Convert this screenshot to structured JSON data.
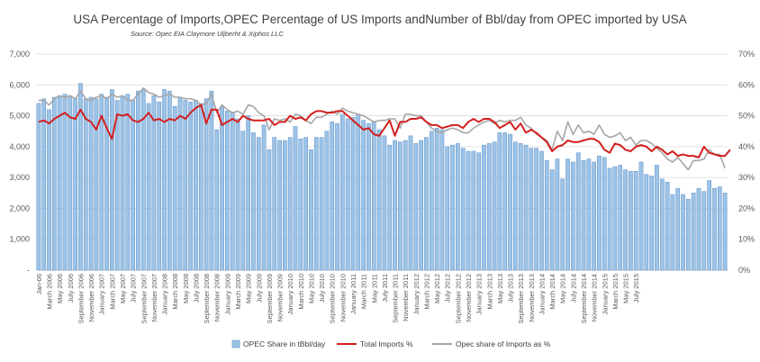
{
  "chart_data": {
    "type": "bar",
    "title": "USA Percentage of Imports,OPEC Percentage of US Imports andNumber  of Bbl/day from OPEC imported by USA",
    "subtitle": "Source: Opec EIA Claymore Uljberht & Xiphos LLC",
    "y_left": {
      "min": 0,
      "max": 7000,
      "ticks": [
        "-",
        "1,000",
        "2,000",
        "3,000",
        "4,000",
        "5,000",
        "6,000",
        "7,000"
      ]
    },
    "y_right": {
      "min": 0,
      "max": 70,
      "ticks": [
        "0%",
        "10%",
        "20%",
        "30%",
        "40%",
        "50%",
        "60%",
        "70%"
      ]
    },
    "grid": true,
    "legend_position": "bottom",
    "x_tick_labels": [
      "Jan-06",
      "March 2006",
      "May 2006",
      "July 2006",
      "September 2006",
      "November 2006",
      "January 2007",
      "March 2007",
      "May 2007",
      "July 2007",
      "September 2007",
      "November 2007",
      "January 2008",
      "March 2008",
      "May 2008",
      "July 2008",
      "September 2008",
      "November 2008",
      "January 2009",
      "March 2009",
      "May 2009",
      "July 2009",
      "September 2009",
      "November 2009",
      "January 2010",
      "March 2010",
      "May 2010",
      "July 2010",
      "September 2010",
      "November 2010",
      "January 2011",
      "March 2011",
      "May 2011",
      "July 2011",
      "September 2011",
      "November 2011",
      "January 2012",
      "March 2012",
      "May 2012",
      "July 2012",
      "September 2012",
      "November 2012",
      "January 2013",
      "March 2013",
      "May 2013",
      "July 2013",
      "September 2013",
      "November 2013",
      "January 2014",
      "March 2014",
      "May 2014",
      "July 2014",
      "September 2014",
      "November 2014",
      "January 2015",
      "March 2015",
      "May 2015",
      "July 2015"
    ],
    "series": [
      {
        "name": "OPEC Share in tBbl/day",
        "type": "bar",
        "axis": "left",
        "color": "#9dc3e6",
        "values": [
          5400,
          5550,
          5200,
          5600,
          5650,
          5700,
          5650,
          5550,
          6050,
          5550,
          5600,
          5550,
          5700,
          5600,
          5850,
          5500,
          5650,
          5700,
          5500,
          5800,
          5850,
          5400,
          5650,
          5450,
          5850,
          5800,
          5300,
          5600,
          5500,
          5450,
          5500,
          5400,
          5550,
          5800,
          4550,
          5300,
          5150,
          5100,
          4900,
          4500,
          5000,
          4450,
          4300,
          4700,
          3900,
          4300,
          4200,
          4200,
          4300,
          4650,
          4250,
          4300,
          3900,
          4300,
          4300,
          4500,
          4800,
          4750,
          5050,
          4900,
          4950,
          5050,
          4850,
          4750,
          4800,
          4550,
          4350,
          4050,
          4200,
          4150,
          4200,
          4350,
          4100,
          4200,
          4300,
          4500,
          4600,
          4550,
          4000,
          4050,
          4100,
          3950,
          3850,
          3850,
          3800,
          4050,
          4100,
          4150,
          4450,
          4450,
          4400,
          4150,
          4100,
          4050,
          3950,
          3950,
          3850,
          3550,
          3250,
          3600,
          2950,
          3600,
          3500,
          3800,
          3550,
          3600,
          3500,
          3700,
          3650,
          3300,
          3350,
          3400,
          3250,
          3200,
          3200,
          3500,
          3100,
          3050,
          3400,
          2950,
          2850,
          2450,
          2650,
          2450,
          2300,
          2500,
          2650,
          2550,
          2900,
          2650,
          2700,
          2500
        ]
      },
      {
        "name": "Total Imports %",
        "type": "line",
        "axis": "right",
        "color": "#d41f1f",
        "values": [
          48,
          48.5,
          47.5,
          49,
          50,
          51,
          49.5,
          49,
          52,
          49,
          48,
          45.5,
          50,
          46,
          42.5,
          50.5,
          50,
          50.5,
          48.5,
          48,
          49,
          51,
          48.5,
          49,
          48,
          49,
          48.5,
          50,
          49,
          51,
          52.5,
          53.5,
          47.5,
          52,
          52,
          47,
          48,
          49,
          48,
          50,
          49,
          48.5,
          48.5,
          48.5,
          49,
          47,
          48,
          48,
          50,
          49,
          49.5,
          48.5,
          50.5,
          51.5,
          51.5,
          51,
          51,
          51.5,
          51.5,
          50,
          48.5,
          47,
          45.5,
          46,
          44,
          43.5,
          46,
          48.5,
          43.5,
          48,
          48,
          49,
          49,
          49.5,
          48,
          47,
          47,
          46,
          46.5,
          47,
          47,
          46,
          48,
          49,
          48,
          49,
          49,
          48,
          46,
          47,
          48,
          45.5,
          47.5,
          44.5,
          45.5,
          44.5,
          43,
          41.5,
          38.5,
          40,
          40.5,
          42,
          41.5,
          41.5,
          42,
          42.5,
          42.5,
          41.5,
          39,
          38,
          41,
          40.5,
          39,
          38.5,
          40,
          40.5,
          40,
          38.5,
          40,
          39,
          37.5,
          38.5,
          37,
          37.5,
          37,
          37,
          36.5,
          40,
          38,
          37.5,
          37,
          37,
          39
        ]
      },
      {
        "name": "Opec share of Imports as %",
        "type": "line",
        "axis": "right",
        "color": "#a6a6a6",
        "values": [
          55,
          55,
          53.5,
          55.5,
          56.5,
          56,
          56.5,
          55.5,
          58,
          55.5,
          55,
          56,
          56.5,
          55.5,
          57,
          56,
          56.5,
          55,
          55,
          57,
          59,
          57.5,
          57,
          56,
          56.5,
          57,
          56,
          56,
          55.5,
          55.5,
          55,
          53.5,
          54,
          57,
          51,
          53.5,
          52,
          51,
          51.5,
          50.5,
          53.5,
          53,
          51,
          50,
          45.5,
          49,
          48.5,
          49,
          48,
          50.5,
          50,
          48.5,
          47.5,
          49.5,
          49.5,
          50.5,
          51.5,
          50.5,
          52.5,
          51.5,
          51,
          50.5,
          50,
          49,
          48,
          48.5,
          48.5,
          49,
          49,
          46,
          50.5,
          50.5,
          50,
          50,
          48,
          46,
          45,
          44.5,
          45.5,
          46,
          45.5,
          44.5,
          44.5,
          46,
          47,
          48,
          48.5,
          47.5,
          48.5,
          48,
          48.5,
          48.5,
          49.5,
          47,
          46,
          44,
          43,
          42,
          39,
          45,
          42,
          48,
          44,
          47,
          44.5,
          45,
          44,
          47,
          44,
          43,
          43.5,
          44.5,
          42,
          43,
          40.5,
          42,
          42,
          41,
          39.5,
          38,
          36,
          35,
          36.5,
          34.5,
          32.5,
          35.5,
          35.5,
          36,
          39,
          37.5,
          37.5,
          33
        ]
      }
    ]
  }
}
